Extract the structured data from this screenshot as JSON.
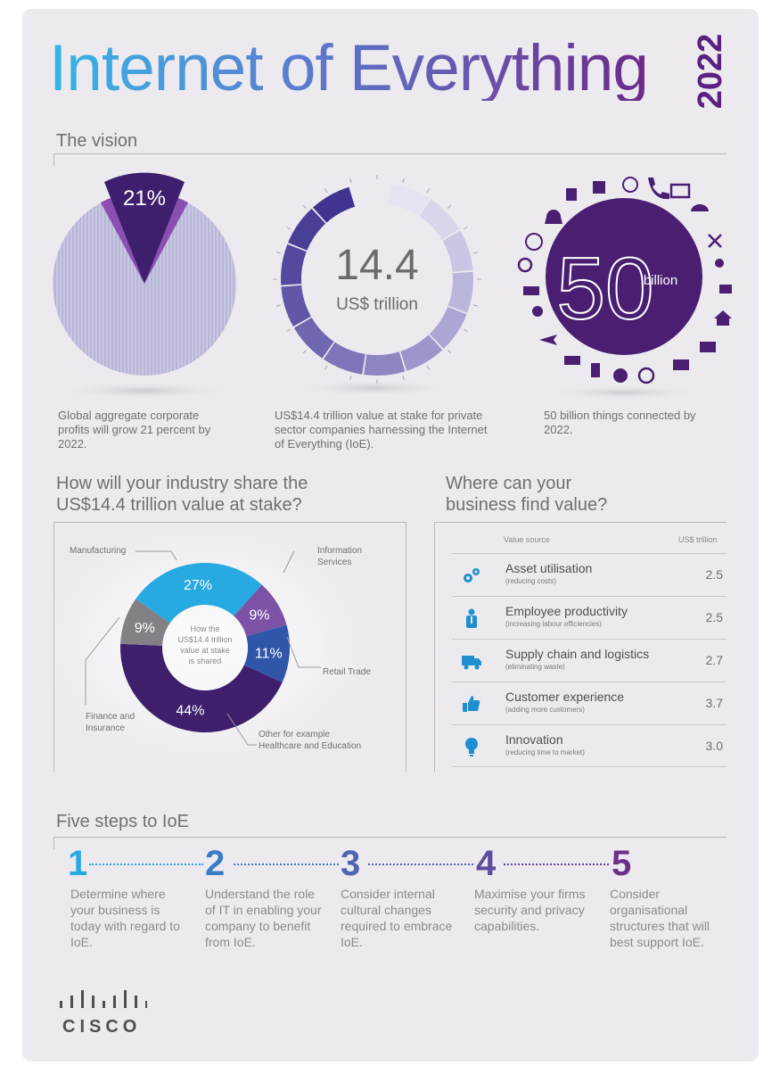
{
  "header": {
    "title": "Internet of Everything",
    "year": "2022"
  },
  "vision": {
    "section_title": "The vision",
    "profits": {
      "percent_label": "21%",
      "percent": 21,
      "caption": "Global aggregate corporate profits will grow 21 percent by 2022."
    },
    "value": {
      "number": "14.4",
      "unit": "US$ trillion",
      "caption": "US$14.4 trillion value at stake for private sector companies harnessing the Internet of Everything (IoE)."
    },
    "things": {
      "number": "50",
      "unit": "billion",
      "caption": "50 billion things connected by 2022."
    }
  },
  "industry_share": {
    "title_line1": "How will your industry share the",
    "title_line2": "US$14.4 trillion value at stake?",
    "center_text": [
      "How the",
      "US$14.4 trillion",
      "value at stake",
      "is shared"
    ],
    "segments": [
      {
        "label_line1": "Manufacturing",
        "label_line2": "",
        "value_label": "27%",
        "value": 27,
        "color": "#29a9e1"
      },
      {
        "label_line1": "Information",
        "label_line2": "Services",
        "value_label": "9%",
        "value": 9,
        "color": "#7c52a6"
      },
      {
        "label_line1": "Retail Trade",
        "label_line2": "",
        "value_label": "11%",
        "value": 11,
        "color": "#2f56a8"
      },
      {
        "label_line1": "Other for example",
        "label_line2": "Healthcare and Education",
        "value_label": "44%",
        "value": 44,
        "color": "#3d1f6b"
      },
      {
        "label_line1": "Finance and",
        "label_line2": "Insurance",
        "value_label": "9%",
        "value": 9,
        "color": "#838086"
      }
    ]
  },
  "business_value": {
    "title_line1": "Where can your",
    "title_line2": "business find value?",
    "col_source": "Value source",
    "col_value": "US$ trillion",
    "rows": [
      {
        "name": "Asset utilisation",
        "sub": "(reducing costs)",
        "value": "2.5",
        "icon": "gears-icon"
      },
      {
        "name": "Employee productivity",
        "sub": "(increasing labour efficiencies)",
        "value": "2.5",
        "icon": "person-icon"
      },
      {
        "name": "Supply chain and logistics",
        "sub": "(eliminating waste)",
        "value": "2.7",
        "icon": "truck-icon"
      },
      {
        "name": "Customer experience",
        "sub": "(adding more customers)",
        "value": "3.7",
        "icon": "thumbs-up-icon"
      },
      {
        "name": "Innovation",
        "sub": "(reducing time to market)",
        "value": "3.0",
        "icon": "lightbulb-icon"
      }
    ]
  },
  "steps": {
    "title": "Five steps to IoE",
    "items": [
      {
        "num": "1",
        "text": "Determine where your business is today with regard to IoE.",
        "color": "#29a9e1"
      },
      {
        "num": "2",
        "text": "Understand the role of IT in enabling your company to benefit from IoE.",
        "color": "#3b7cc6"
      },
      {
        "num": "3",
        "text": "Consider internal cultural changes required to embrace IoE.",
        "color": "#4d64b3"
      },
      {
        "num": "4",
        "text": "Maximise your firms security and privacy capabilities.",
        "color": "#5f4a9e"
      },
      {
        "num": "5",
        "text": "Consider organisational structures that will best support IoE.",
        "color": "#6b2f8c"
      }
    ]
  },
  "brand": {
    "name": "CISCO"
  }
}
